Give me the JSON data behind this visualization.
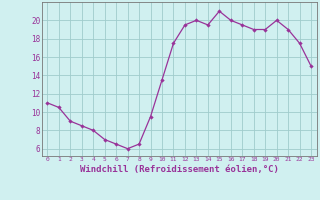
{
  "x": [
    0,
    1,
    2,
    3,
    4,
    5,
    6,
    7,
    8,
    9,
    10,
    11,
    12,
    13,
    14,
    15,
    16,
    17,
    18,
    19,
    20,
    21,
    22,
    23
  ],
  "y": [
    11,
    10.5,
    9,
    8.5,
    8,
    7,
    6.5,
    6,
    6.5,
    9.5,
    13.5,
    17.5,
    19.5,
    20,
    19.5,
    21,
    20,
    19.5,
    19,
    19,
    20,
    19,
    17.5,
    15
  ],
  "line_color": "#993399",
  "marker": "D",
  "marker_size": 2.2,
  "background_color": "#d0f0f0",
  "grid_color": "#a0cccc",
  "tick_color": "#993399",
  "xlabel": "Windchill (Refroidissement éolien,°C)",
  "xlabel_fontsize": 6.5,
  "ylabel_ticks": [
    6,
    8,
    10,
    12,
    14,
    16,
    18,
    20
  ],
  "ylim": [
    5.2,
    22.0
  ],
  "xlim": [
    -0.5,
    23.5
  ],
  "xticks": [
    0,
    1,
    2,
    3,
    4,
    5,
    6,
    7,
    8,
    9,
    10,
    11,
    12,
    13,
    14,
    15,
    16,
    17,
    18,
    19,
    20,
    21,
    22,
    23
  ]
}
